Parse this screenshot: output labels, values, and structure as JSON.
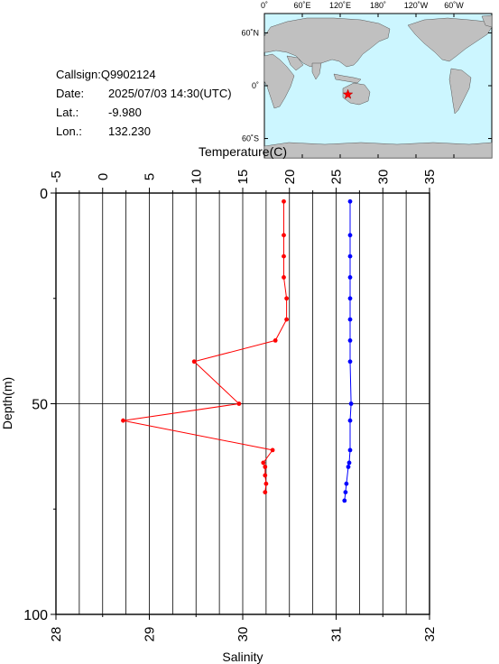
{
  "info": {
    "callsign": "Callsign:Q9902124",
    "date_label": "Date:",
    "date_value": "2025/07/03 14:30(UTC)",
    "lat_label": "Lat.:",
    "lat_value": "-9.980",
    "lon_label": "Lon.:",
    "lon_value": "132.230"
  },
  "map": {
    "top_labels": [
      "0˚",
      "60˚E",
      "120˚E",
      "180˚",
      "120˚W",
      "60˚W"
    ],
    "left_labels": [
      "60˚N",
      "0˚",
      "60˚S"
    ],
    "ocean_color": "#ccf6ff",
    "land_color": "#c0c0c0",
    "marker_color": "#ff0000",
    "marker_icon": "star-marker-icon",
    "marker_lat": -9.98,
    "marker_lon": 132.23
  },
  "chart_data": {
    "type": "line",
    "top_axis": {
      "label": "Temperature(C)",
      "ticks": [
        "-5",
        "0",
        "5",
        "10",
        "15",
        "20",
        "25",
        "30",
        "35"
      ],
      "range": [
        -5,
        35
      ]
    },
    "bottom_axis": {
      "label": "Salinity",
      "ticks": [
        "28",
        "29",
        "30",
        "31",
        "32"
      ],
      "range": [
        28,
        32
      ]
    },
    "y_axis": {
      "label": "Depth(m)",
      "ticks": [
        "0",
        "50",
        "100"
      ],
      "range": [
        0,
        100
      ],
      "inverted": true
    },
    "grid": true,
    "series": [
      {
        "axis": "temperature",
        "color": "#ff0000",
        "depth": [
          2,
          10,
          15,
          20,
          25,
          30,
          35,
          40,
          50,
          54,
          61,
          64,
          65,
          67,
          69,
          71
        ],
        "values": [
          19.4,
          19.4,
          19.4,
          19.4,
          19.7,
          19.7,
          18.5,
          9.8,
          14.6,
          2.2,
          18.2,
          17.2,
          17.4,
          17.4,
          17.5,
          17.4
        ]
      },
      {
        "axis": "salinity",
        "color": "#0000ff",
        "depth": [
          2,
          10,
          15,
          20,
          25,
          30,
          35,
          40,
          50,
          54,
          61,
          64,
          65,
          69,
          71,
          73
        ],
        "values": [
          31.15,
          31.15,
          31.15,
          31.15,
          31.15,
          31.15,
          31.15,
          31.15,
          31.16,
          31.15,
          31.15,
          31.14,
          31.13,
          31.11,
          31.1,
          31.09
        ]
      }
    ]
  }
}
